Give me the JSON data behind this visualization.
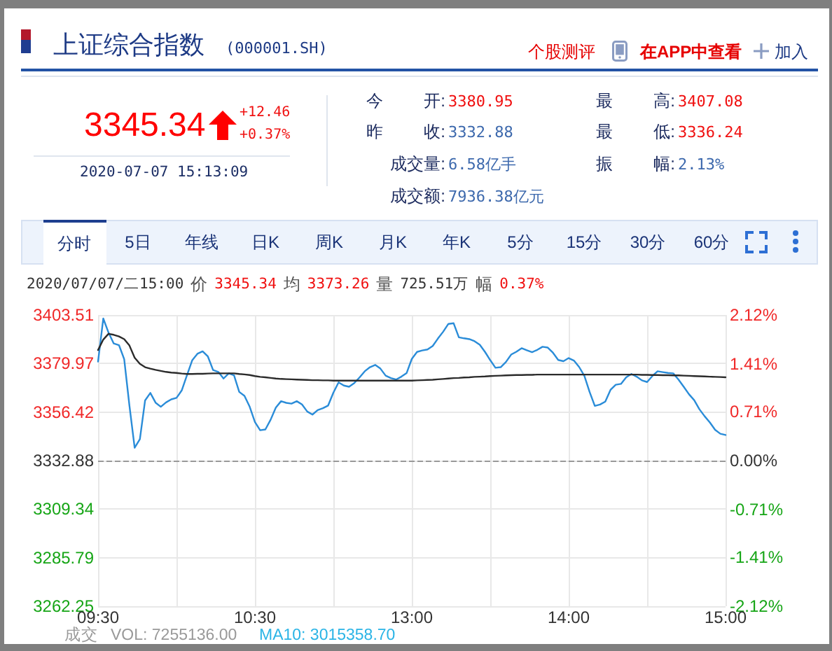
{
  "chart_data": {
    "type": "line",
    "title": "上证综合指数",
    "subtitle": "(000001.SH)",
    "categories": [
      "09:30",
      null,
      null,
      null,
      null,
      null,
      null,
      null,
      null,
      null,
      null,
      null,
      null,
      null,
      null,
      null,
      null,
      null,
      null,
      null,
      null,
      null,
      null,
      null,
      null,
      null,
      null,
      null,
      null,
      null,
      "10:30",
      null,
      null,
      null,
      null,
      null,
      null,
      null,
      null,
      null,
      null,
      null,
      null,
      null,
      null,
      null,
      null,
      null,
      null,
      null,
      null,
      null,
      null,
      null,
      null,
      null,
      null,
      null,
      null,
      null,
      "13:00",
      null,
      null,
      null,
      null,
      null,
      null,
      null,
      null,
      null,
      null,
      null,
      null,
      null,
      null,
      null,
      null,
      null,
      null,
      null,
      null,
      null,
      null,
      null,
      null,
      null,
      null,
      null,
      null,
      null,
      "14:00",
      null,
      null,
      null,
      null,
      null,
      null,
      null,
      null,
      null,
      null,
      null,
      null,
      null,
      null,
      null,
      null,
      null,
      null,
      null,
      null,
      null,
      null,
      null,
      null,
      null,
      null,
      null,
      null,
      null,
      "15:00"
    ],
    "series": [
      {
        "color": "#2a8cd8",
        "values": [
          3380.9,
          3401.8,
          3395.0,
          3389.7,
          3388.9,
          3382.1,
          3359.6,
          3339.1,
          3343.3,
          3362.1,
          3365.7,
          3361.0,
          3359.0,
          3361.1,
          3362.6,
          3363.3,
          3366.9,
          3374.3,
          3381.5,
          3384.7,
          3385.9,
          3383.4,
          3376.8,
          3375.9,
          3372.7,
          3375.2,
          3374.3,
          3366.2,
          3364.3,
          3359.0,
          3351.6,
          3347.6,
          3348.0,
          3352.7,
          3358.6,
          3361.7,
          3360.9,
          3360.5,
          3361.7,
          3360.1,
          3356.7,
          3355.2,
          3357.4,
          3358.3,
          3359.6,
          3365.8,
          3370.8,
          3369.3,
          3368.7,
          3370.5,
          3373.2,
          3376.2,
          3378.2,
          3379.3,
          3377.5,
          3374.1,
          3372.9,
          3372.2,
          3373.6,
          3375.3,
          3382.2,
          3385.6,
          3386.3,
          3386.8,
          3388.5,
          3392.1,
          3395.4,
          3399.2,
          3399.5,
          3392.7,
          3392.2,
          3391.8,
          3390.8,
          3389.1,
          3385.6,
          3381.6,
          3377.9,
          3378.2,
          3380.7,
          3384.3,
          3385.7,
          3387.4,
          3386.4,
          3385.5,
          3386.6,
          3388.1,
          3387.7,
          3385.2,
          3381.7,
          3381.1,
          3382.6,
          3381.4,
          3378.3,
          3374.0,
          3366.2,
          3359.4,
          3360.1,
          3361.5,
          3367.2,
          3369.7,
          3370.1,
          3373.3,
          3374.9,
          3373.6,
          3371.8,
          3371.0,
          3373.9,
          3376.2,
          3375.8,
          3375.4,
          3375.2,
          3372.2,
          3368.7,
          3365.1,
          3362.2,
          3357.8,
          3354.4,
          3351.4,
          3347.8,
          3345.9,
          3345.3
        ]
      },
      {
        "color": "#2b2b2b",
        "values": [
          3386.5,
          3391.6,
          3394.4,
          3393.9,
          3393.1,
          3391.8,
          3388.7,
          3382.8,
          3379.8,
          3378.2,
          3377.5,
          3376.9,
          3376.4,
          3375.9,
          3375.6,
          3375.4,
          3375.1,
          3374.9,
          3374.9,
          3375.0,
          3375.0,
          3375.1,
          3375.2,
          3375.2,
          3375.2,
          3375.2,
          3375.2,
          3374.9,
          3374.7,
          3374.4,
          3373.9,
          3373.5,
          3373.3,
          3373.0,
          3372.7,
          3372.5,
          3372.4,
          3372.3,
          3372.2,
          3372.1,
          3372.0,
          3371.9,
          3371.9,
          3371.8,
          3371.8,
          3371.7,
          3371.7,
          3371.7,
          3371.7,
          3371.7,
          3371.7,
          3371.7,
          3371.7,
          3371.7,
          3371.7,
          3371.7,
          3371.7,
          3371.7,
          3371.7,
          3371.7,
          3371.7,
          3371.8,
          3371.9,
          3372.0,
          3372.1,
          3372.3,
          3372.5,
          3372.7,
          3372.9,
          3373.0,
          3373.2,
          3373.3,
          3373.5,
          3373.6,
          3373.7,
          3373.9,
          3374.0,
          3374.1,
          3374.2,
          3374.3,
          3374.4,
          3374.4,
          3374.5,
          3374.5,
          3374.6,
          3374.6,
          3374.6,
          3374.6,
          3374.6,
          3374.6,
          3374.6,
          3374.6,
          3374.6,
          3374.6,
          3374.6,
          3374.6,
          3374.6,
          3374.6,
          3374.6,
          3374.6,
          3374.6,
          3374.6,
          3374.6,
          3374.6,
          3374.5,
          3374.5,
          3374.4,
          3374.4,
          3374.3,
          3374.3,
          3374.2,
          3374.2,
          3374.1,
          3374.0,
          3373.9,
          3373.8,
          3373.7,
          3373.6,
          3373.5,
          3373.4,
          3373.3
        ]
      }
    ],
    "ylim": [
      3262.25,
      3403.51
    ],
    "yticks": [
      3262.25,
      3285.79,
      3309.34,
      3332.88,
      3356.42,
      3379.97,
      3403.51
    ],
    "y2lim": [
      -2.12,
      2.12
    ],
    "y2ticks": [
      {
        "value": -2.12,
        "label": "-2.12%"
      },
      {
        "value": -1.41,
        "label": "-1.41%"
      },
      {
        "value": -0.71,
        "label": "-0.71%"
      },
      {
        "value": 0,
        "label": "0.00%"
      },
      {
        "value": 0.71,
        "label": "0.71%"
      },
      {
        "value": 1.41,
        "label": "1.41%"
      },
      {
        "value": 2.12,
        "label": "2.12%"
      }
    ],
    "ref_lines": [
      {
        "axis": "y",
        "value": 3332.88,
        "color": "#999999",
        "line_style": "dashed"
      }
    ],
    "grid": true,
    "marker": "none",
    "annotations": [
      "个股测评",
      "在APP中查看",
      "加入",
      "3345.34",
      "+12.46",
      "+0.37%",
      "2020-07-07 15:13:09",
      "今 开:",
      "3380.95",
      "昨 收:",
      "3332.88",
      "成交量:",
      "6.58亿手",
      "成交额:",
      "7936.38亿元",
      "最 高:",
      "3407.08",
      "最 低:",
      "3336.24",
      "振 幅:",
      "2.13%",
      "分时",
      "5日",
      "年线",
      "日K",
      "周K",
      "月K",
      "年K",
      "5分",
      "15分",
      "30分",
      "60分",
      "2020/07/07/二15:00",
      "价",
      "3345.34",
      "均",
      "3373.26",
      "量",
      "725.51万",
      "幅",
      "0.37%",
      "成交",
      "VOL: 7255136.00",
      "MA10: 3015358.70"
    ]
  }
}
